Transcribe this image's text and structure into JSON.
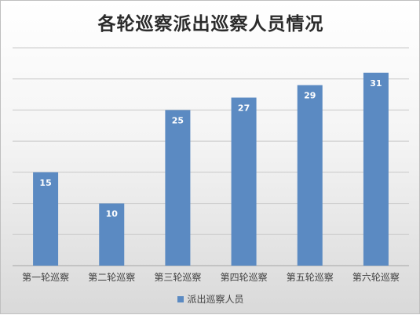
{
  "chart_data": {
    "type": "bar",
    "title": "各轮巡察派出巡察人员情况",
    "categories": [
      "第一轮巡察",
      "第二轮巡察",
      "第三轮巡察",
      "第四轮巡察",
      "第五轮巡察",
      "第六轮巡察"
    ],
    "series": [
      {
        "name": "派出巡察人员",
        "values": [
          15,
          10,
          25,
          27,
          29,
          31
        ],
        "color": "#5b8ac2"
      }
    ],
    "ylim": [
      0,
      35
    ],
    "grid": true,
    "legend": "bottom"
  }
}
